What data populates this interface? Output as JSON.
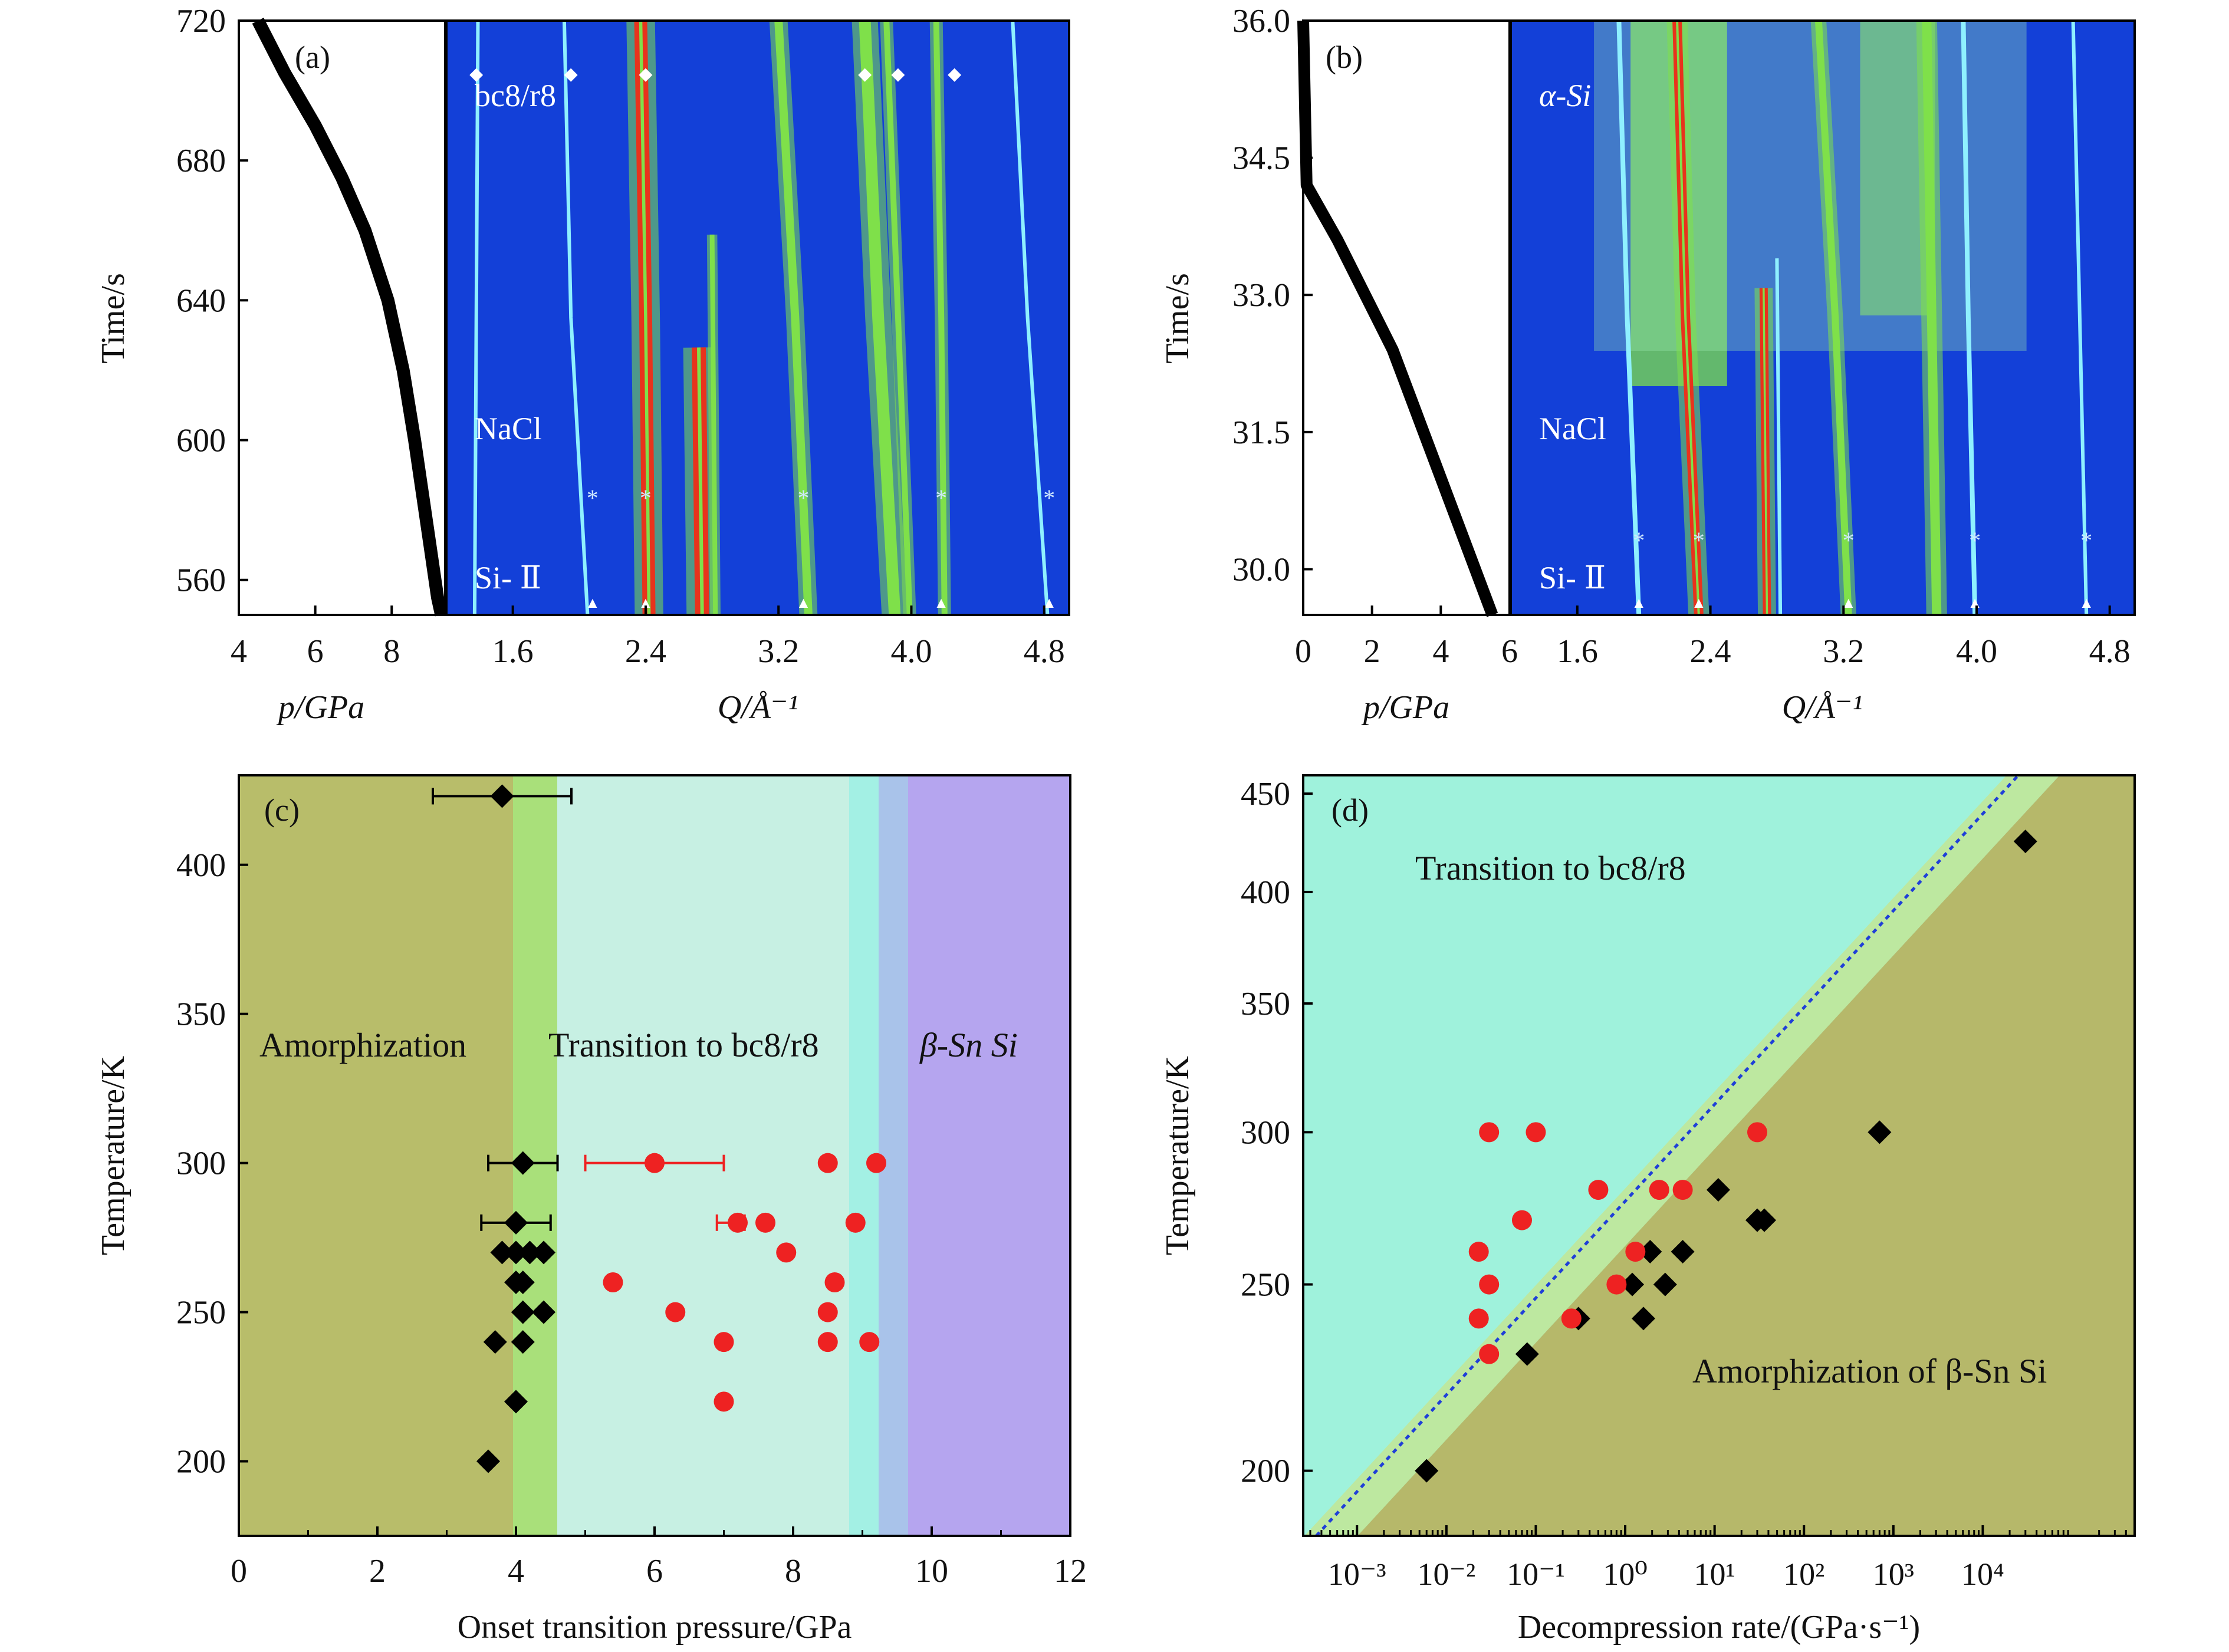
{
  "colors": {
    "heat_bg": "#1340d8",
    "heat_line": "#8ff0ff",
    "heat_green": "#7fe04a",
    "heat_red": "#e8331c",
    "amorph": "#b8bd6a",
    "bc8_zone": "#c7f0e3",
    "green_strip": "#a9e07a",
    "cyan_strip": "#a3f0e4",
    "blue_strip": "#a9c3ea",
    "betasn": "#b5a5ef",
    "d_upper": "#9ff2dc",
    "d_lower": "#b6b86a",
    "marker_black": "#000000",
    "marker_red": "#ee2222",
    "fit_line": "#1f3fd8"
  },
  "chart_data": [
    {
      "panel": "(a)",
      "type": "line",
      "xlabel": "p/GPa",
      "ylabel": "Time/s",
      "xlim": [
        4,
        9.4
      ],
      "ylim": [
        550,
        720
      ],
      "xticks": [
        "4",
        "6",
        "8"
      ],
      "yticks": [
        "560",
        "600",
        "640",
        "680",
        "720"
      ],
      "x": [
        4.5,
        5.2,
        6.0,
        6.7,
        7.3,
        7.9,
        8.3,
        8.6,
        8.8,
        9.0,
        9.2,
        9.3
      ],
      "y": [
        720,
        705,
        690,
        675,
        660,
        640,
        620,
        600,
        585,
        570,
        555,
        550
      ]
    },
    {
      "panel": "(a)",
      "type": "heatmap",
      "xlabel": "Q/Å⁻¹",
      "xlim": [
        1.2,
        4.95
      ],
      "xticks": [
        "1.6",
        "2.4",
        "3.2",
        "4.0",
        "4.8"
      ],
      "labels": [
        "bc8/r8",
        "NaCl",
        "Si- Ⅱ"
      ],
      "lines": [
        {
          "q": [
            1.39,
            1.38,
            1.37
          ],
          "w": 6,
          "c": "line"
        },
        {
          "q": [
            1.91,
            1.95,
            2.05
          ],
          "w": 6,
          "c": "line"
        },
        {
          "q": [
            2.37,
            2.4,
            2.42
          ],
          "w": 22,
          "c": "red"
        },
        {
          "q": [
            2.72,
            2.74
          ],
          "w": 24,
          "c": "red",
          "t": [
            0.55,
            1.0
          ]
        },
        {
          "q": [
            2.8,
            2.82
          ],
          "w": 8,
          "c": "green",
          "t": [
            0.36,
            1.0
          ]
        },
        {
          "q": [
            3.2,
            3.3,
            3.38
          ],
          "w": 14,
          "c": "green"
        },
        {
          "q": [
            3.72,
            3.8,
            3.9
          ],
          "w": 20,
          "c": "green"
        },
        {
          "q": [
            3.85,
            3.92,
            3.99
          ],
          "w": 10,
          "c": "green"
        },
        {
          "q": [
            4.15,
            4.18,
            4.2
          ],
          "w": 10,
          "c": "green"
        },
        {
          "q": [
            4.61,
            4.7,
            4.82
          ],
          "w": 6,
          "c": "line"
        }
      ],
      "stars": [
        2.08,
        2.4,
        3.35,
        4.18,
        4.83
      ]
    },
    {
      "panel": "(b)",
      "type": "line",
      "xlabel": "p/GPa",
      "ylabel": "Time/s",
      "xlim": [
        0,
        6
      ],
      "ylim": [
        29.5,
        36.0
      ],
      "xticks": [
        "0",
        "2",
        "4",
        "6"
      ],
      "yticks": [
        "30.0",
        "31.5",
        "33.0",
        "34.5",
        "36.0"
      ],
      "x": [
        0.0,
        0.1,
        0.4,
        1.0,
        1.8,
        2.6,
        3.3,
        4.0,
        4.6,
        5.1,
        5.5
      ],
      "y": [
        36.0,
        34.2,
        34.0,
        33.6,
        33.0,
        32.4,
        31.7,
        31.0,
        30.4,
        29.9,
        29.5
      ]
    },
    {
      "panel": "(b)",
      "type": "heatmap",
      "xlabel": "Q/Å⁻¹",
      "xlim": [
        1.2,
        4.95
      ],
      "xticks": [
        "1.6",
        "2.4",
        "3.2",
        "4.0",
        "4.8"
      ],
      "labels": [
        "α-Si",
        "NaCl",
        "Si- Ⅱ"
      ],
      "lines": [
        {
          "q": [
            1.85,
            1.9,
            1.97
          ],
          "w": 8,
          "c": "line"
        },
        {
          "q": [
            2.2,
            2.25,
            2.33
          ],
          "w": 16,
          "c": "red"
        },
        {
          "q": [
            2.72,
            2.74
          ],
          "w": 14,
          "c": "red",
          "t": [
            0.45,
            1.0
          ]
        },
        {
          "q": [
            2.8,
            2.82
          ],
          "w": 6,
          "c": "line",
          "t": [
            0.4,
            1.0
          ]
        },
        {
          "q": [
            3.05,
            3.15,
            3.23
          ],
          "w": 12,
          "c": "green"
        },
        {
          "q": [
            3.7,
            3.73,
            3.76
          ],
          "w": 16,
          "c": "green"
        },
        {
          "q": [
            3.92,
            3.95,
            3.99
          ],
          "w": 8,
          "c": "line"
        },
        {
          "q": [
            4.58,
            4.62,
            4.66
          ],
          "w": 6,
          "c": "line"
        }
      ],
      "stars": [
        1.97,
        2.33,
        3.23,
        3.99,
        4.66
      ]
    },
    {
      "panel": "(c)",
      "type": "scatter",
      "xlabel": "Onset transition pressure/GPa",
      "ylabel": "Temperature/K",
      "xlim": [
        0,
        12
      ],
      "ylim": [
        175,
        430
      ],
      "xticks": [
        "0",
        "2",
        "4",
        "6",
        "8",
        "10",
        "12"
      ],
      "yticks": [
        "200",
        "250",
        "300",
        "350",
        "400"
      ],
      "regions": [
        "Amorphization",
        "Transition to bc8/r8",
        "β-Sn Si"
      ],
      "series": [
        {
          "marker": "diamond",
          "color": "black",
          "points": [
            [
              3.8,
              423
            ],
            [
              4.1,
              300
            ],
            [
              4.0,
              280
            ],
            [
              3.8,
              270
            ],
            [
              4.0,
              270
            ],
            [
              4.2,
              270
            ],
            [
              4.4,
              270
            ],
            [
              4.0,
              260
            ],
            [
              4.1,
              260
            ],
            [
              4.1,
              250
            ],
            [
              4.4,
              250
            ],
            [
              3.7,
              240
            ],
            [
              4.1,
              240
            ],
            [
              4.0,
              220
            ],
            [
              3.6,
              200
            ]
          ],
          "errors": [
            [
              3.8,
              423,
              2.8,
              4.8
            ],
            [
              4.1,
              300,
              3.6,
              4.6
            ],
            [
              4.0,
              280,
              3.5,
              4.5
            ]
          ]
        },
        {
          "marker": "circle",
          "color": "red",
          "points": [
            [
              6.0,
              300
            ],
            [
              8.5,
              300
            ],
            [
              9.2,
              300
            ],
            [
              7.2,
              280
            ],
            [
              7.6,
              280
            ],
            [
              8.9,
              280
            ],
            [
              7.9,
              270
            ],
            [
              5.4,
              260
            ],
            [
              8.6,
              260
            ],
            [
              6.3,
              250
            ],
            [
              8.5,
              250
            ],
            [
              7.0,
              240
            ],
            [
              8.5,
              240
            ],
            [
              9.1,
              240
            ],
            [
              7.0,
              220
            ]
          ],
          "errors": [
            [
              6.0,
              300,
              5.0,
              7.0
            ],
            [
              7.2,
              280,
              6.9,
              7.3
            ]
          ]
        }
      ]
    },
    {
      "panel": "(d)",
      "type": "scatter",
      "xlabel": "Decompression rate/(GPa·s⁻¹)",
      "ylabel": "Temperature/K",
      "xscale": "log",
      "yscale": "log",
      "xlim": [
        0.00025,
        500000
      ],
      "ylim": [
        185,
        460
      ],
      "xticks": [
        "10⁻³",
        "10⁻²",
        "10⁻¹",
        "10⁰",
        "10¹",
        "10²",
        "10³",
        "10⁴"
      ],
      "yticks": [
        "200",
        "250",
        "300",
        "350",
        "400",
        "450"
      ],
      "annotations": [
        "Transition to bc8/r8",
        "Amorphization of β-Sn Si"
      ],
      "series": [
        {
          "marker": "diamond",
          "color": "black",
          "points": [
            [
              0.006,
              200
            ],
            [
              0.08,
              230
            ],
            [
              0.3,
              240
            ],
            [
              1.2,
              250
            ],
            [
              1.6,
              240
            ],
            [
              1.9,
              260
            ],
            [
              2.8,
              250
            ],
            [
              4.4,
              260
            ],
            [
              11,
              280
            ],
            [
              30,
              270
            ],
            [
              36,
              270
            ],
            [
              700,
              300
            ],
            [
              30000,
              425
            ]
          ]
        },
        {
          "marker": "circle",
          "color": "red",
          "points": [
            [
              0.03,
              300
            ],
            [
              0.1,
              300
            ],
            [
              30,
              300
            ],
            [
              0.5,
              280
            ],
            [
              2.4,
              280
            ],
            [
              4.4,
              280
            ],
            [
              0.07,
              270
            ],
            [
              0.023,
              260
            ],
            [
              1.3,
              260
            ],
            [
              0.03,
              250
            ],
            [
              0.8,
              250
            ],
            [
              0.023,
              240
            ],
            [
              0.25,
              240
            ],
            [
              0.03,
              230
            ]
          ]
        }
      ],
      "fit_line": {
        "x": [
          0.00035,
          25000
        ],
        "y": [
          185,
          460
        ]
      }
    }
  ]
}
